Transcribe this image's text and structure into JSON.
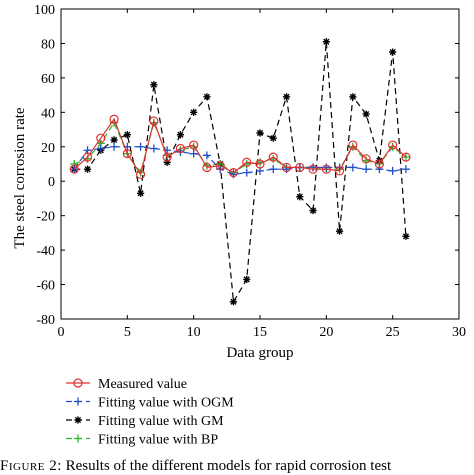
{
  "chart_data": {
    "type": "line",
    "xlabel": "Data group",
    "ylabel": "The steel corrosion rate",
    "xlim": [
      0,
      30
    ],
    "ylim": [
      -80,
      100
    ],
    "xticks": [
      0,
      5,
      10,
      15,
      20,
      25,
      30
    ],
    "yticks": [
      -80,
      -60,
      -40,
      -20,
      0,
      20,
      40,
      60,
      80,
      100
    ],
    "x": [
      1,
      2,
      3,
      4,
      5,
      6,
      7,
      8,
      9,
      10,
      11,
      12,
      13,
      14,
      15,
      16,
      17,
      18,
      19,
      20,
      21,
      22,
      23,
      24,
      25,
      26
    ],
    "series": [
      {
        "name": "Measured value",
        "color": "#e03030",
        "style": "solid",
        "marker": "circle",
        "values": [
          7,
          14,
          25,
          36,
          16,
          4,
          35,
          14,
          19,
          21,
          8,
          9,
          5,
          11,
          10,
          14,
          8,
          8,
          7,
          7,
          6,
          21,
          13,
          10,
          21,
          14
        ]
      },
      {
        "name": "Fitting value with OGM",
        "color": "#2050c8",
        "style": "dashed",
        "marker": "plus",
        "values": [
          7,
          18,
          19,
          20,
          20,
          20,
          19,
          18,
          17,
          16,
          15,
          7,
          4,
          5,
          6,
          7,
          7,
          8,
          8,
          8,
          8,
          8,
          7,
          7,
          6,
          7
        ]
      },
      {
        "name": "Fitting value with GM",
        "color": "#000000",
        "style": "dashed",
        "marker": "star",
        "values": [
          7,
          7,
          18,
          24,
          27,
          -7,
          56,
          11,
          27,
          40,
          49,
          10,
          -70,
          -57,
          28,
          25,
          49,
          -9,
          -17,
          81,
          -29,
          49,
          39,
          12,
          75,
          -32
        ]
      },
      {
        "name": "Fitting value with BP",
        "color": "#30b030",
        "style": "dashed",
        "marker": "plus",
        "values": [
          10,
          13,
          22,
          34,
          16,
          5,
          34,
          15,
          18,
          20,
          9,
          10,
          5,
          10,
          11,
          13,
          8,
          8,
          8,
          7,
          7,
          20,
          12,
          10,
          20,
          14
        ]
      }
    ],
    "grid": false,
    "legend_placement": "below"
  },
  "caption": {
    "figure_label": "Figure 2:",
    "text": " Results of the different models for rapid corrosion test"
  }
}
